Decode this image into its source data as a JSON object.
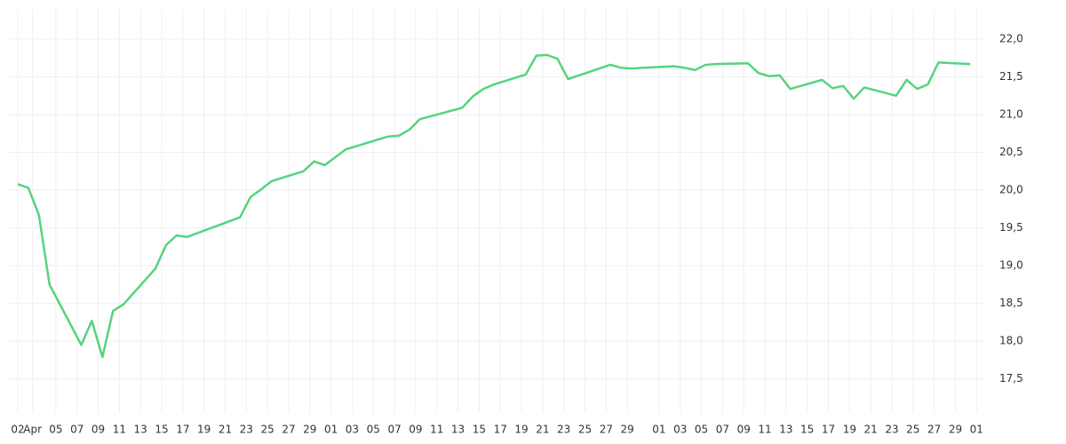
{
  "chart_data": {
    "type": "line",
    "x": [
      0,
      1,
      2,
      3,
      6,
      7,
      8,
      9,
      10,
      13,
      14,
      15,
      16,
      21,
      22,
      23,
      24,
      27,
      28,
      29,
      31,
      35,
      36,
      37,
      38,
      42,
      43,
      44,
      45,
      48,
      49,
      50,
      51,
      52,
      56,
      57,
      58,
      59,
      62,
      63,
      64,
      65,
      66,
      69,
      70,
      71,
      72,
      73,
      76,
      77,
      78,
      79,
      80,
      83,
      84,
      85,
      86,
      87,
      90
    ],
    "series": [
      {
        "color": "#55d47e",
        "values": [
          20.08,
          20.03,
          19.67,
          18.75,
          17.95,
          18.27,
          17.79,
          18.4,
          18.49,
          18.96,
          19.27,
          19.4,
          19.38,
          19.64,
          19.91,
          20.01,
          20.12,
          20.25,
          20.38,
          20.33,
          20.54,
          20.71,
          20.72,
          20.8,
          20.94,
          21.09,
          21.24,
          21.34,
          21.4,
          21.53,
          21.78,
          21.79,
          21.74,
          21.47,
          21.66,
          21.62,
          21.61,
          21.62,
          21.64,
          21.62,
          21.59,
          21.66,
          21.67,
          21.68,
          21.55,
          21.51,
          21.52,
          21.34,
          21.46,
          21.35,
          21.38,
          21.21,
          21.36,
          21.25,
          21.46,
          21.34,
          21.4,
          21.69,
          21.67
        ]
      }
    ],
    "xlim": [
      -0.84,
      91.5
    ],
    "xticks": [
      {
        "value": 0,
        "label": "02"
      },
      {
        "value": 1.4,
        "label": "Apr"
      },
      {
        "value": 3.6,
        "label": "05"
      },
      {
        "value": 5.6,
        "label": "07"
      },
      {
        "value": 7.6,
        "label": "09"
      },
      {
        "value": 9.6,
        "label": "11"
      },
      {
        "value": 11.6,
        "label": "13"
      },
      {
        "value": 13.6,
        "label": "15"
      },
      {
        "value": 15.6,
        "label": "17"
      },
      {
        "value": 17.6,
        "label": "19"
      },
      {
        "value": 19.6,
        "label": "21"
      },
      {
        "value": 21.6,
        "label": "23"
      },
      {
        "value": 23.6,
        "label": "25"
      },
      {
        "value": 25.6,
        "label": "27"
      },
      {
        "value": 27.6,
        "label": "29"
      },
      {
        "value": 29.6,
        "label": "01"
      },
      {
        "value": 31.6,
        "label": "03"
      },
      {
        "value": 33.6,
        "label": "05"
      },
      {
        "value": 35.6,
        "label": "07"
      },
      {
        "value": 37.6,
        "label": "09"
      },
      {
        "value": 39.6,
        "label": "11"
      },
      {
        "value": 41.6,
        "label": "13"
      },
      {
        "value": 43.6,
        "label": "15"
      },
      {
        "value": 45.6,
        "label": "17"
      },
      {
        "value": 47.6,
        "label": "19"
      },
      {
        "value": 49.6,
        "label": "21"
      },
      {
        "value": 51.6,
        "label": "23"
      },
      {
        "value": 53.6,
        "label": "25"
      },
      {
        "value": 55.6,
        "label": "27"
      },
      {
        "value": 57.6,
        "label": "29"
      },
      {
        "value": 60.6,
        "label": "01"
      },
      {
        "value": 62.6,
        "label": "03"
      },
      {
        "value": 64.6,
        "label": "05"
      },
      {
        "value": 66.6,
        "label": "07"
      },
      {
        "value": 68.6,
        "label": "09"
      },
      {
        "value": 70.6,
        "label": "11"
      },
      {
        "value": 72.6,
        "label": "13"
      },
      {
        "value": 74.6,
        "label": "15"
      },
      {
        "value": 76.6,
        "label": "17"
      },
      {
        "value": 78.6,
        "label": "19"
      },
      {
        "value": 80.6,
        "label": "21"
      },
      {
        "value": 82.6,
        "label": "23"
      },
      {
        "value": 84.6,
        "label": "25"
      },
      {
        "value": 86.6,
        "label": "27"
      },
      {
        "value": 88.6,
        "label": "29"
      },
      {
        "value": 90.6,
        "label": "01"
      }
    ],
    "ylim": [
      17.05,
      22.4
    ],
    "yticks": [
      {
        "value": 17.5,
        "label": "17,5"
      },
      {
        "value": 18,
        "label": "18,0"
      },
      {
        "value": 18.5,
        "label": "18,5"
      },
      {
        "value": 19,
        "label": "19,0"
      },
      {
        "value": 19.5,
        "label": "19,5"
      },
      {
        "value": 20,
        "label": "20,0"
      },
      {
        "value": 20.5,
        "label": "20,5"
      },
      {
        "value": 21,
        "label": "21,0"
      },
      {
        "value": 21.5,
        "label": "21,5"
      },
      {
        "value": 22,
        "label": "22,0"
      }
    ],
    "grid": true
  }
}
